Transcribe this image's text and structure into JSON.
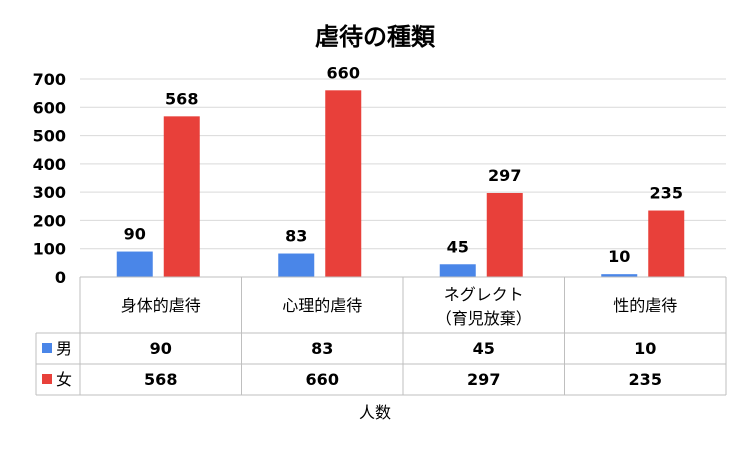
{
  "chart_data": {
    "type": "bar",
    "title": "虐待の種類",
    "xlabel": "人数",
    "ylabel": "",
    "ylim": [
      0,
      700
    ],
    "yticks": [
      0,
      100,
      200,
      300,
      400,
      500,
      600,
      700
    ],
    "grid": true,
    "legend": "data-table",
    "categories": [
      [
        "身体的虐待"
      ],
      [
        "心理的虐待"
      ],
      [
        "ネグレクト",
        "（育児放棄）"
      ],
      [
        "性的虐待"
      ]
    ],
    "series": [
      {
        "name": "男",
        "color": "#4a86e8",
        "values": [
          90,
          83,
          45,
          10
        ]
      },
      {
        "name": "女",
        "color": "#e8403a",
        "values": [
          568,
          660,
          297,
          235
        ]
      }
    ]
  }
}
